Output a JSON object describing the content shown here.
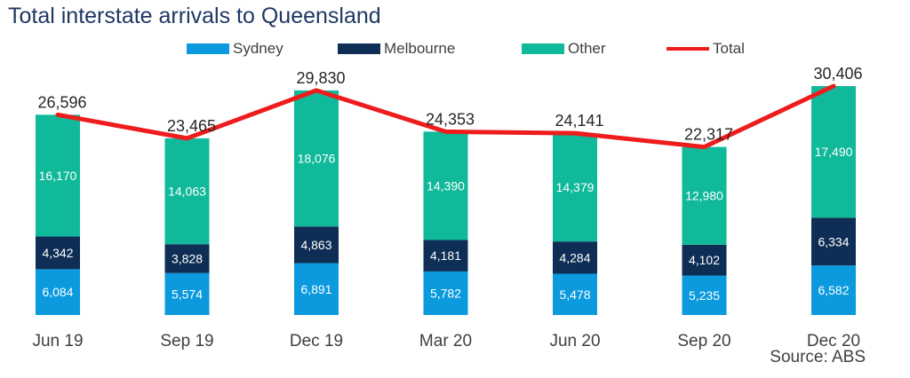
{
  "chart_data": {
    "type": "bar",
    "stacked": true,
    "title": "Total interstate arrivals to Queensland",
    "source": "Source: ABS",
    "categories": [
      "Jun 19",
      "Sep 19",
      "Dec 19",
      "Mar 20",
      "Jun 20",
      "Sep 20",
      "Dec 20"
    ],
    "series": [
      {
        "name": "Sydney",
        "color": "#0b9ade",
        "label_color": "#ffffff",
        "values": [
          6084,
          5574,
          6891,
          5782,
          5478,
          5235,
          6582
        ],
        "labels": [
          "6,084",
          "5,574",
          "6,891",
          "5,782",
          "5,478",
          "5,235",
          "6,582"
        ]
      },
      {
        "name": "Melbourne",
        "color": "#0e2e55",
        "label_color": "#ffffff",
        "values": [
          4342,
          3828,
          4863,
          4181,
          4284,
          4102,
          6334
        ],
        "labels": [
          "4,342",
          "3,828",
          "4,863",
          "4,181",
          "4,284",
          "4,102",
          "6,334"
        ]
      },
      {
        "name": "Other",
        "color": "#10b99a",
        "label_color": "#ffffff",
        "values": [
          16170,
          14063,
          18076,
          14390,
          14379,
          12980,
          17490
        ],
        "labels": [
          "16,170",
          "14,063",
          "18,076",
          "14,390",
          "14,379",
          "12,980",
          "17,490"
        ]
      }
    ],
    "total": {
      "name": "Total",
      "color": "#ee1c1c",
      "values": [
        26596,
        23465,
        29830,
        24353,
        24141,
        22317,
        30406
      ],
      "labels": [
        "26,596",
        "23,465",
        "29,830",
        "24,353",
        "24,141",
        "22,317",
        "30,406"
      ]
    },
    "legend": "top",
    "grid": false
  }
}
